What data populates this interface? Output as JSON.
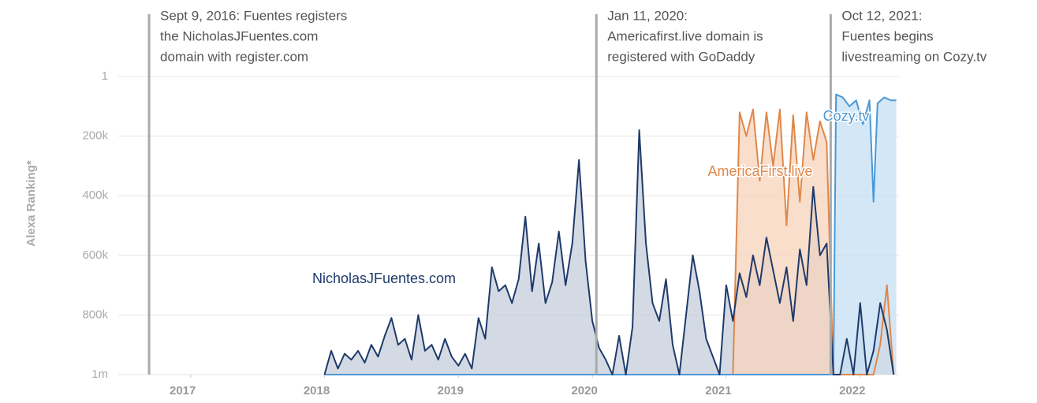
{
  "chart_data": {
    "type": "area",
    "y_label": "Alexa Ranking*",
    "xlim": [
      2016.46,
      2022.29
    ],
    "xticks": [
      2017,
      2018,
      2019,
      2020,
      2021,
      2022
    ],
    "ylim": [
      1,
      1000000
    ],
    "y_inverted": true,
    "yticks": [
      1,
      {
        "value": 200000,
        "label": "200k"
      },
      {
        "value": 400000,
        "label": "400k"
      },
      {
        "value": 600000,
        "label": "600k"
      },
      {
        "value": 800000,
        "label": "800k"
      },
      {
        "value": 1000000,
        "label": "1m"
      }
    ],
    "grid": true,
    "annotations": [
      {
        "x": 2016.69,
        "lines": [
          "Sept 9, 2016: Fuentes registers",
          "the NicholasJFuentes.com",
          "domain with register.com"
        ]
      },
      {
        "x": 2020.03,
        "lines": [
          "Jan 11, 2020:",
          "Americafirst.live domain is",
          "registered with GoDaddy"
        ]
      },
      {
        "x": 2021.78,
        "lines": [
          "Oct 12, 2021:",
          "Fuentes begins",
          "livestreaming on Cozy.tv"
        ]
      }
    ],
    "series": [
      {
        "name": "NicholasJFuentes.com",
        "color": "#1f3a6b",
        "fill": "#c5cedb",
        "x": [
          2018.0,
          2018.05,
          2018.1,
          2018.15,
          2018.2,
          2018.25,
          2018.3,
          2018.35,
          2018.4,
          2018.45,
          2018.5,
          2018.55,
          2018.6,
          2018.65,
          2018.7,
          2018.75,
          2018.8,
          2018.85,
          2018.9,
          2018.95,
          2019.0,
          2019.05,
          2019.1,
          2019.15,
          2019.2,
          2019.25,
          2019.3,
          2019.35,
          2019.4,
          2019.45,
          2019.5,
          2019.55,
          2019.6,
          2019.65,
          2019.7,
          2019.75,
          2019.8,
          2019.85,
          2019.9,
          2019.95,
          2020.0,
          2020.05,
          2020.1,
          2020.15,
          2020.2,
          2020.25,
          2020.3,
          2020.35,
          2020.4,
          2020.45,
          2020.5,
          2020.55,
          2020.6,
          2020.65,
          2020.7,
          2020.75,
          2020.8,
          2020.85,
          2020.9,
          2020.95,
          2021.0,
          2021.05,
          2021.1,
          2021.15,
          2021.2,
          2021.25,
          2021.3,
          2021.35,
          2021.4,
          2021.45,
          2021.5,
          2021.55,
          2021.6,
          2021.65,
          2021.7,
          2021.75,
          2021.8,
          2021.85,
          2021.9,
          2021.95,
          2022.0,
          2022.05,
          2022.1,
          2022.15,
          2022.2,
          2022.25
        ],
        "values": [
          1000000,
          920000,
          980000,
          930000,
          950000,
          920000,
          960000,
          900000,
          940000,
          870000,
          810000,
          900000,
          880000,
          950000,
          800000,
          920000,
          900000,
          950000,
          880000,
          940000,
          970000,
          930000,
          980000,
          810000,
          880000,
          640000,
          720000,
          700000,
          760000,
          680000,
          470000,
          720000,
          560000,
          760000,
          690000,
          520000,
          700000,
          560000,
          280000,
          620000,
          820000,
          910000,
          950000,
          1000000,
          870000,
          1000000,
          840000,
          180000,
          560000,
          760000,
          820000,
          680000,
          900000,
          1000000,
          800000,
          600000,
          720000,
          880000,
          940000,
          1000000,
          700000,
          820000,
          660000,
          740000,
          600000,
          700000,
          540000,
          650000,
          760000,
          640000,
          820000,
          580000,
          700000,
          370000,
          600000,
          560000,
          1000000,
          1000000,
          880000,
          1000000,
          760000,
          1000000,
          920000,
          760000,
          850000,
          1000000
        ]
      },
      {
        "name": "AmericaFirst.live",
        "color": "#e0874a",
        "fill": "#f7d3bb",
        "x": [
          2021.05,
          2021.1,
          2021.15,
          2021.2,
          2021.25,
          2021.3,
          2021.35,
          2021.4,
          2021.45,
          2021.5,
          2021.55,
          2021.6,
          2021.65,
          2021.7,
          2021.75,
          2021.8,
          2021.85,
          2021.9,
          2021.95,
          2022.0,
          2022.05,
          2022.1,
          2022.15,
          2022.2,
          2022.25
        ],
        "values": [
          1000000,
          120000,
          200000,
          110000,
          350000,
          120000,
          300000,
          110000,
          500000,
          130000,
          420000,
          120000,
          280000,
          150000,
          220000,
          1000000,
          1000000,
          1000000,
          1000000,
          1000000,
          1000000,
          1000000,
          900000,
          700000,
          1000000
        ]
      },
      {
        "name": "Cozy.tv",
        "color": "#4a98d6",
        "fill": "#c6dff3",
        "x": [
          2018.0,
          2021.78,
          2021.8,
          2021.82,
          2021.87,
          2021.92,
          2021.97,
          2022.02,
          2022.07,
          2022.1,
          2022.13,
          2022.18,
          2022.23,
          2022.27
        ],
        "values": [
          1000000,
          1000000,
          1000000,
          60000,
          70000,
          100000,
          80000,
          160000,
          80000,
          420000,
          90000,
          70000,
          80000,
          80000
        ]
      }
    ]
  }
}
